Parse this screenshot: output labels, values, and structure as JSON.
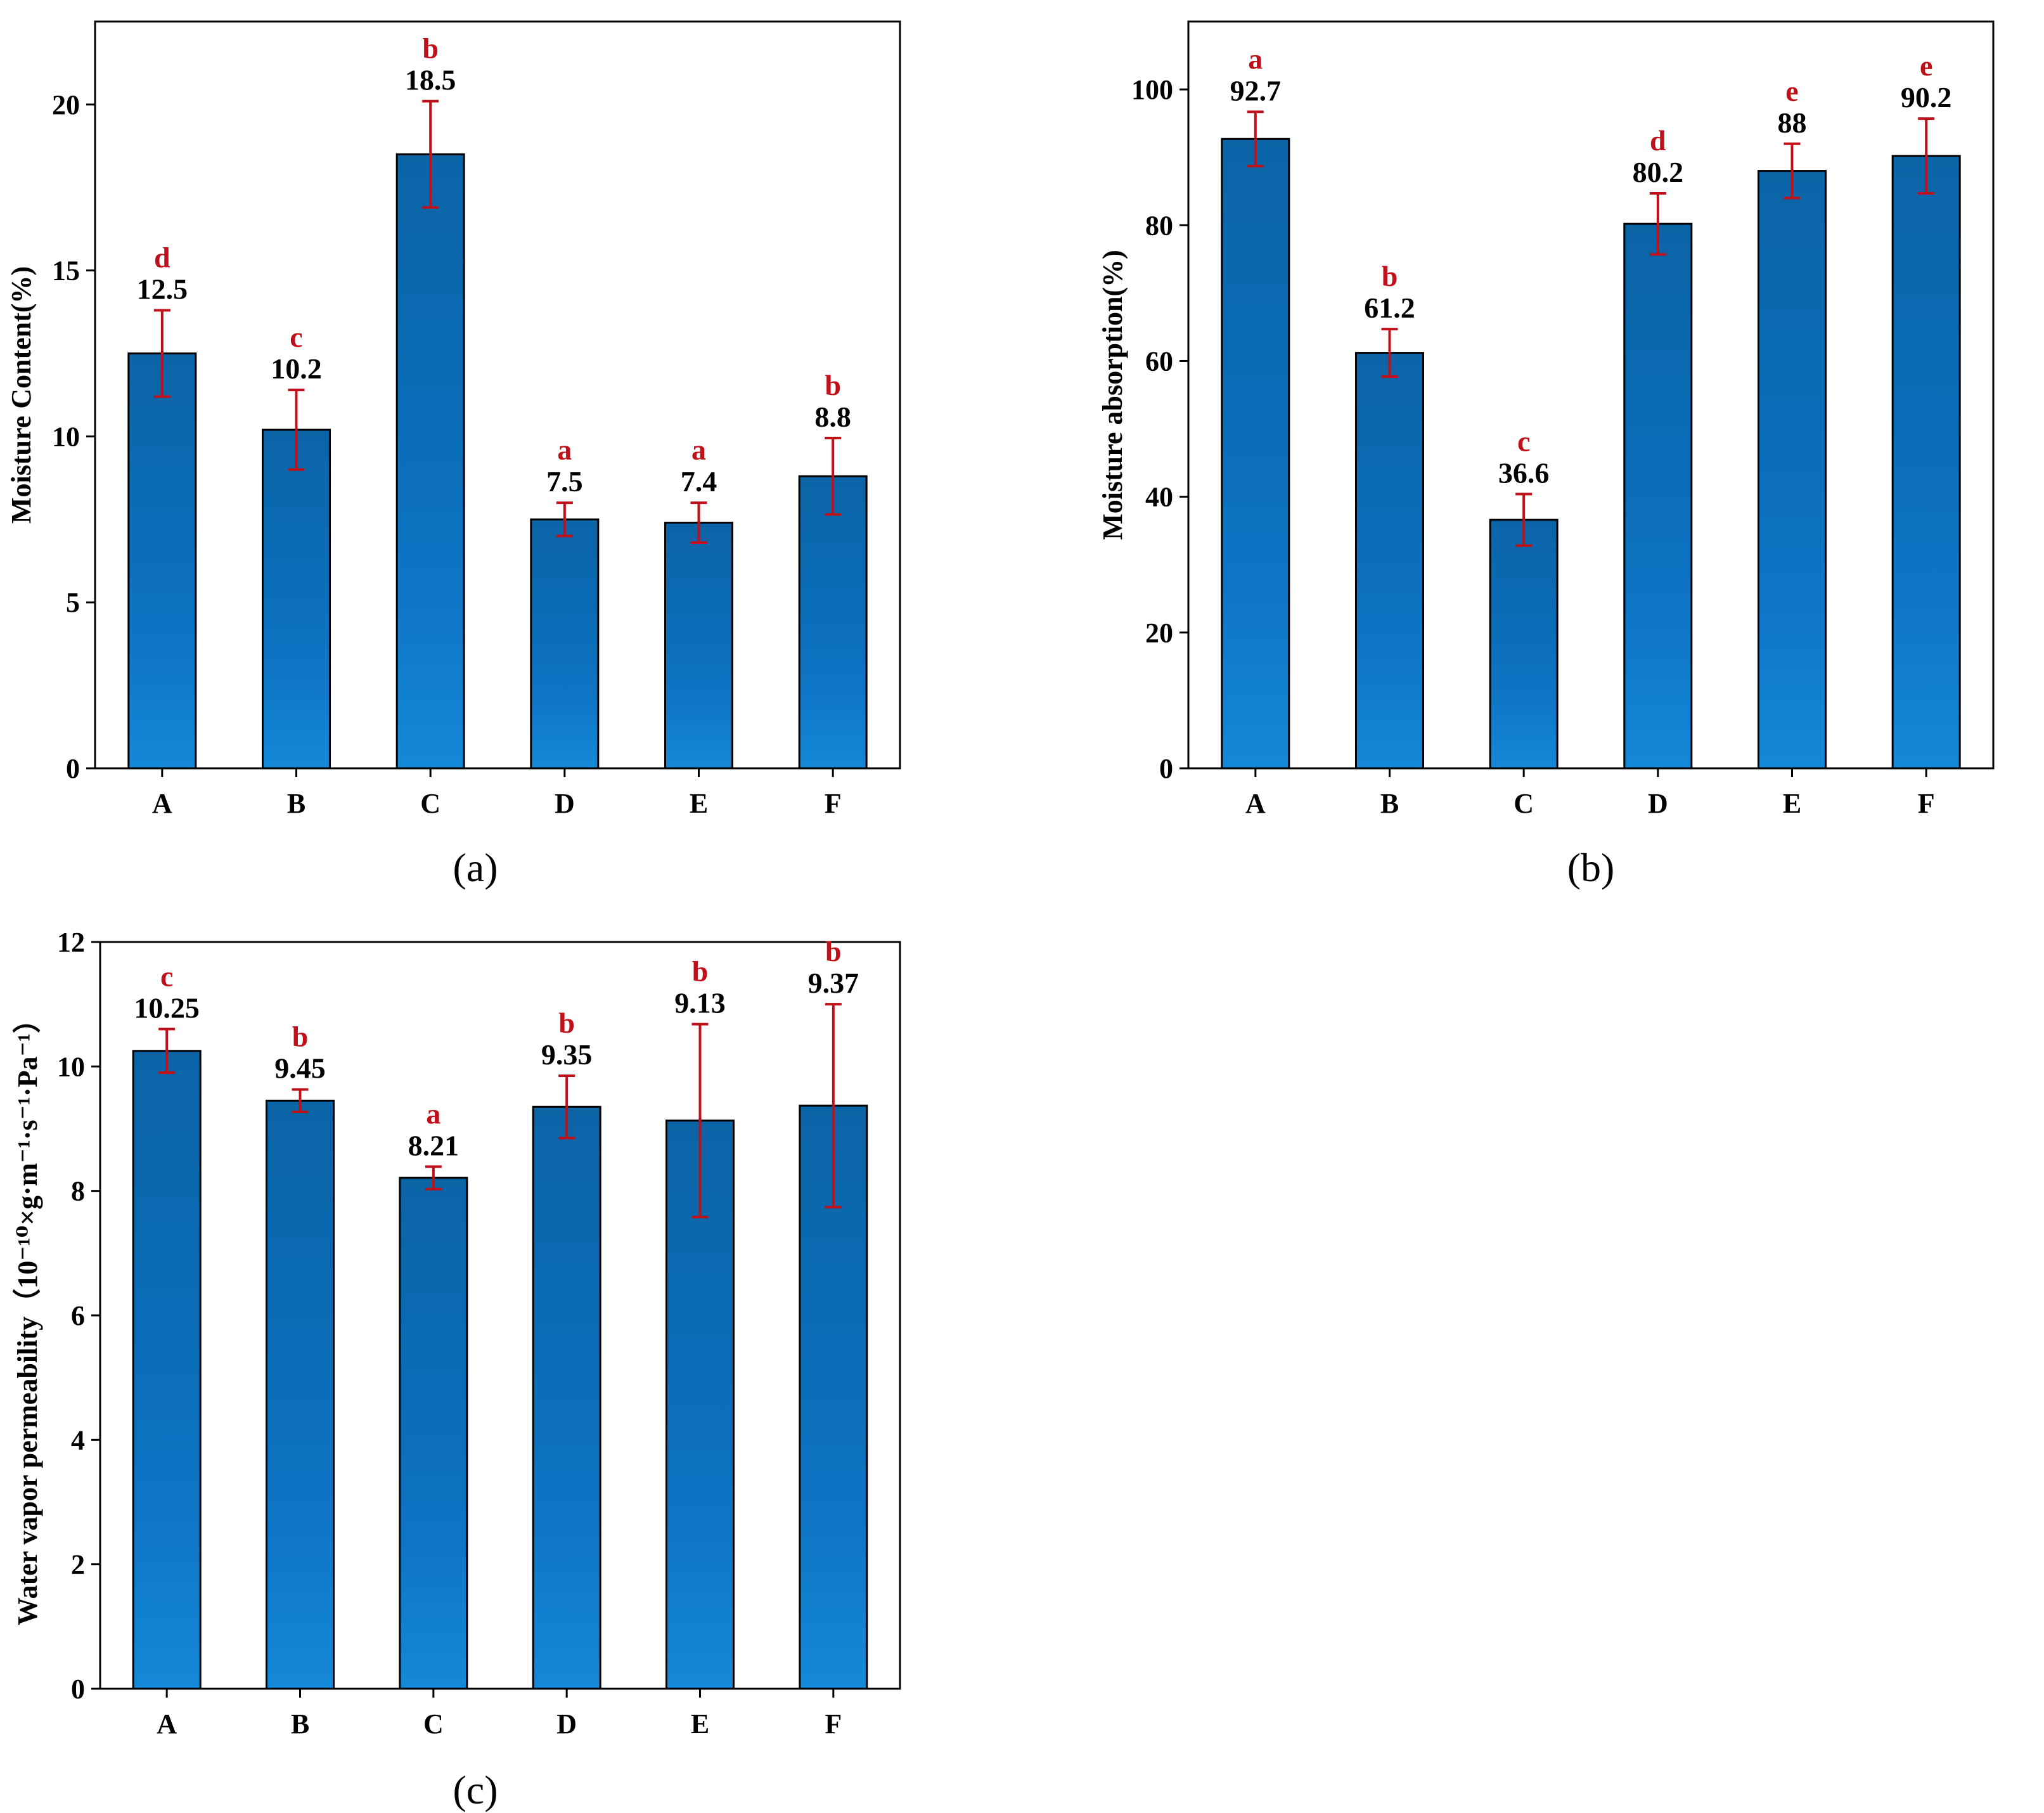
{
  "colors": {
    "bar_top": "#0a67aa",
    "bar_bottom": "#1287d6",
    "error_bar": "#c0101a",
    "sig_letter": "#c0101a",
    "axis": "#000000"
  },
  "chart_data": [
    {
      "type": "bar",
      "panel_label": "(a)",
      "categories": [
        "A",
        "B",
        "C",
        "D",
        "E",
        "F"
      ],
      "values": [
        12.5,
        10.2,
        18.5,
        7.5,
        7.4,
        8.8
      ],
      "value_labels": [
        "12.5",
        "10.2",
        "18.5",
        "7.5",
        "7.4",
        "8.8"
      ],
      "errors": [
        1.3,
        1.2,
        1.6,
        0.5,
        0.6,
        1.15
      ],
      "significance": [
        "d",
        "c",
        "b",
        "a",
        "a",
        "b"
      ],
      "ylabel": "Moisture Content(%)",
      "xlabel": "",
      "ylim": [
        0,
        22.5
      ],
      "yticks": [
        0,
        5,
        10,
        15,
        20
      ],
      "ytick_labels": [
        "0",
        "5",
        "10",
        "15",
        "20"
      ]
    },
    {
      "type": "bar",
      "panel_label": "(b)",
      "categories": [
        "A",
        "B",
        "C",
        "D",
        "E",
        "F"
      ],
      "values": [
        92.7,
        61.2,
        36.6,
        80.2,
        88,
        90.2
      ],
      "value_labels": [
        "92.7",
        "61.2",
        "36.6",
        "80.2",
        "88",
        "90.2"
      ],
      "errors": [
        4.0,
        3.5,
        3.8,
        4.5,
        4.0,
        5.5
      ],
      "significance": [
        "a",
        "b",
        "c",
        "d",
        "e",
        "e"
      ],
      "ylabel": "Moisture absorption(%)",
      "xlabel": "",
      "ylim": [
        0,
        110
      ],
      "yticks": [
        0,
        20,
        40,
        60,
        80,
        100
      ],
      "ytick_labels": [
        "0",
        "20",
        "40",
        "60",
        "80",
        "100"
      ]
    },
    {
      "type": "bar",
      "panel_label": "(c)",
      "categories": [
        "A",
        "B",
        "C",
        "D",
        "E",
        "F"
      ],
      "values": [
        10.25,
        9.45,
        8.21,
        9.35,
        9.13,
        9.37
      ],
      "value_labels": [
        "10.25",
        "9.45",
        "8.21",
        "9.35",
        "9.13",
        "9.37"
      ],
      "errors": [
        0.35,
        0.18,
        0.18,
        0.5,
        1.55,
        1.63
      ],
      "significance": [
        "c",
        "b",
        "a",
        "b",
        "b",
        "b"
      ],
      "ylabel": "Water vapor permeability（10⁻¹⁰×g·m⁻¹·s⁻¹·Pa⁻¹）",
      "xlabel": "",
      "ylim": [
        0,
        12
      ],
      "yticks": [
        0,
        2,
        4,
        6,
        8,
        10,
        12
      ],
      "ytick_labels": [
        "0",
        "2",
        "4",
        "6",
        "8",
        "10",
        "12"
      ]
    }
  ]
}
